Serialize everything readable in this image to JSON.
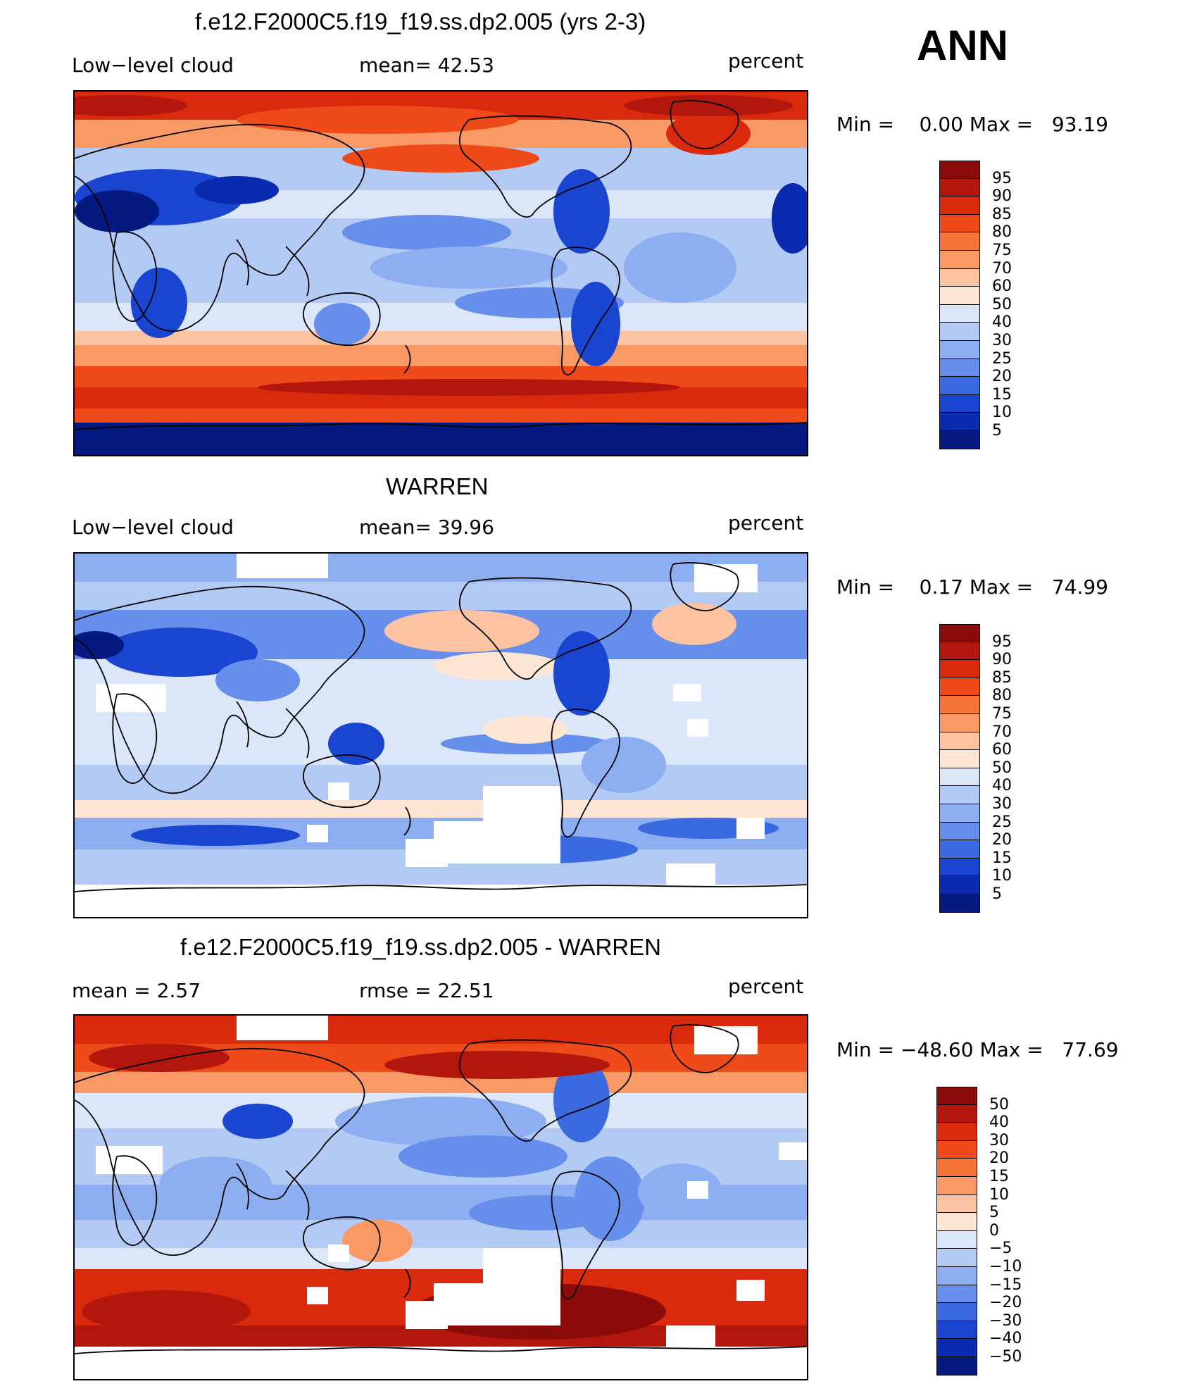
{
  "season": "ANN",
  "panels": [
    {
      "title": "f.e12.F2000C5.f19_f19.ss.dp2.005 (yrs 2-3)",
      "left_label": "Low−level cloud",
      "center_label": "mean=   42.53",
      "units": "percent",
      "minmax": "Min =    0.00 Max =   93.19",
      "variant": "model"
    },
    {
      "title": "WARREN",
      "left_label": "Low−level cloud",
      "center_label": "mean=   39.96",
      "units": "percent",
      "minmax": "Min =    0.17 Max =   74.99",
      "variant": "obs"
    },
    {
      "title": "f.e12.F2000C5.f19_f19.ss.dp2.005 - WARREN",
      "left_label": "mean =     2.57",
      "center_label": "rmse =   22.51",
      "units": "percent",
      "minmax": "Min = −48.60 Max =   77.69",
      "variant": "diff"
    }
  ],
  "colorbars": [
    {
      "labels": [
        "95",
        "90",
        "85",
        "80",
        "75",
        "70",
        "60",
        "50",
        "40",
        "30",
        "25",
        "20",
        "15",
        "10",
        "5"
      ],
      "colors": [
        "#8b0a0a",
        "#b3160c",
        "#d92a0d",
        "#ef4a1a",
        "#f6743a",
        "#f99a66",
        "#fcc3a3",
        "#fde6d3",
        "#dbe6f8",
        "#b3cbf4",
        "#8daef0",
        "#658fea",
        "#3b69e0",
        "#1a45d1",
        "#0a2bb0",
        "#051a80"
      ]
    },
    {
      "labels": [
        "95",
        "90",
        "85",
        "80",
        "75",
        "70",
        "60",
        "50",
        "40",
        "30",
        "25",
        "20",
        "15",
        "10",
        "5"
      ],
      "colors": [
        "#8b0a0a",
        "#b3160c",
        "#d92a0d",
        "#ef4a1a",
        "#f6743a",
        "#f99a66",
        "#fcc3a3",
        "#fde6d3",
        "#dbe6f8",
        "#b3cbf4",
        "#8daef0",
        "#658fea",
        "#3b69e0",
        "#1a45d1",
        "#0a2bb0",
        "#051a80"
      ]
    },
    {
      "labels": [
        "50",
        "40",
        "30",
        "20",
        "15",
        "10",
        "5",
        "0",
        "−5",
        "−10",
        "−15",
        "−20",
        "−30",
        "−40",
        "−50"
      ],
      "colors": [
        "#8b0a0a",
        "#b3160c",
        "#d92a0d",
        "#ef4a1a",
        "#f6743a",
        "#f99a66",
        "#fcc3a3",
        "#fde6d3",
        "#dbe6f8",
        "#b3cbf4",
        "#8daef0",
        "#658fea",
        "#3b69e0",
        "#1a45d1",
        "#0a2bb0",
        "#051a80"
      ]
    }
  ]
}
